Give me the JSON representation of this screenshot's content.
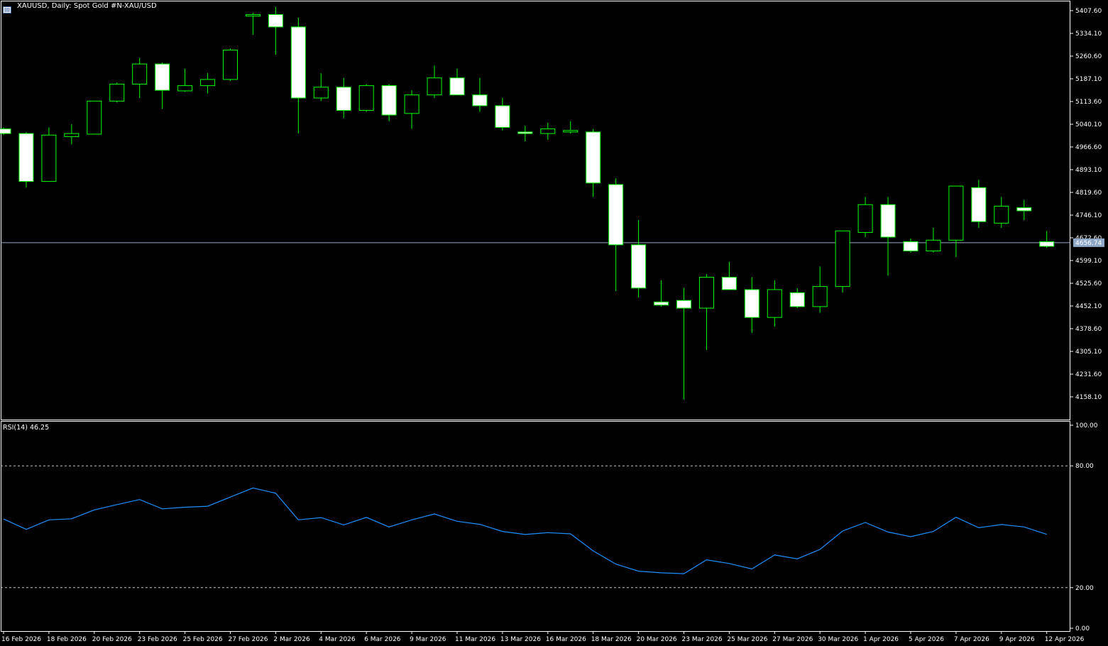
{
  "window": {
    "symbol": "XAUUSD",
    "timeframe": "Daily",
    "description": "Spot Gold #N-XAU/USD",
    "title_text": "XAUUSD, Daily:  Spot Gold #N-XAU/USD"
  },
  "colors": {
    "background": "#000000",
    "bull_body": "#000000",
    "bear_body": "#ffffff",
    "candle_outline": "#00ff00",
    "rsi_line": "#1e90ff",
    "bid_line": "#8fa8c8",
    "grid_text": "#ffffff"
  },
  "rsi_panel": {
    "label": "RSI(14) 46.25",
    "levels": [
      80,
      20
    ],
    "y_ticks": [
      "100.00",
      "80.00",
      "20.00",
      "0.00"
    ]
  },
  "price_axis": {
    "ticks": [
      "5407.60",
      "5334.10",
      "5260.60",
      "5187.10",
      "5113.60",
      "5040.10",
      "4966.60",
      "4893.10",
      "4819.60",
      "4746.10",
      "4672.60",
      "4599.10",
      "4525.60",
      "4452.10",
      "4378.60",
      "4305.10",
      "4231.60",
      "4158.10"
    ],
    "current_price": "4656.74"
  },
  "time_axis": {
    "labels": [
      "16 Feb 2026",
      "18 Feb 2026",
      "20 Feb 2026",
      "23 Feb 2026",
      "25 Feb 2026",
      "27 Feb 2026",
      "2 Mar 2026",
      "4 Mar 2026",
      "6 Mar 2026",
      "9 Mar 2026",
      "11 Mar 2026",
      "13 Mar 2026",
      "16 Mar 2026",
      "18 Mar 2026",
      "20 Mar 2026",
      "23 Mar 2026",
      "25 Mar 2026",
      "27 Mar 2026",
      "30 Mar 2026",
      "1 Apr 2026",
      "5 Apr 2026",
      "7 Apr 2026",
      "9 Apr 2026",
      "12 Apr 2026"
    ]
  },
  "chart_data": [
    {
      "type": "candlestick",
      "title": "XAUUSD, Daily:  Spot Gold #N-XAU/USD",
      "ylim": [
        4140,
        5420
      ],
      "candles": [
        {
          "open": 5025,
          "high": 5030,
          "low": 5005,
          "close": 5010
        },
        {
          "open": 5010,
          "high": 5015,
          "low": 4835,
          "close": 4855
        },
        {
          "open": 4855,
          "high": 5030,
          "low": 4855,
          "close": 5005
        },
        {
          "open": 5000,
          "high": 5040,
          "low": 4975,
          "close": 5010
        },
        {
          "open": 5008,
          "high": 5115,
          "low": 5008,
          "close": 5115
        },
        {
          "open": 5115,
          "high": 5175,
          "low": 5110,
          "close": 5170
        },
        {
          "open": 5170,
          "high": 5255,
          "low": 5125,
          "close": 5235
        },
        {
          "open": 5235,
          "high": 5240,
          "low": 5090,
          "close": 5150
        },
        {
          "open": 5148,
          "high": 5220,
          "low": 5145,
          "close": 5165
        },
        {
          "open": 5165,
          "high": 5205,
          "low": 5140,
          "close": 5185
        },
        {
          "open": 5185,
          "high": 5285,
          "low": 5180,
          "close": 5280
        },
        {
          "open": 5390,
          "high": 5400,
          "low": 5330,
          "close": 5395
        },
        {
          "open": 5395,
          "high": 5420,
          "low": 5265,
          "close": 5355
        },
        {
          "open": 5355,
          "high": 5385,
          "low": 5010,
          "close": 5125
        },
        {
          "open": 5125,
          "high": 5205,
          "low": 5115,
          "close": 5160
        },
        {
          "open": 5160,
          "high": 5190,
          "low": 5060,
          "close": 5085
        },
        {
          "open": 5085,
          "high": 5170,
          "low": 5080,
          "close": 5165
        },
        {
          "open": 5165,
          "high": 5170,
          "low": 5050,
          "close": 5070
        },
        {
          "open": 5075,
          "high": 5150,
          "low": 5025,
          "close": 5135
        },
        {
          "open": 5135,
          "high": 5230,
          "low": 5125,
          "close": 5190
        },
        {
          "open": 5190,
          "high": 5220,
          "low": 5135,
          "close": 5135
        },
        {
          "open": 5135,
          "high": 5190,
          "low": 5080,
          "close": 5100
        },
        {
          "open": 5100,
          "high": 5125,
          "low": 5020,
          "close": 5030
        },
        {
          "open": 5015,
          "high": 5035,
          "low": 4985,
          "close": 5010
        },
        {
          "open": 5010,
          "high": 5045,
          "low": 4990,
          "close": 5025
        },
        {
          "open": 5015,
          "high": 5050,
          "low": 5010,
          "close": 5020
        },
        {
          "open": 5015,
          "high": 5025,
          "low": 4805,
          "close": 4850
        },
        {
          "open": 4845,
          "high": 4865,
          "low": 4500,
          "close": 4650
        },
        {
          "open": 4650,
          "high": 4730,
          "low": 4480,
          "close": 4510
        },
        {
          "open": 4465,
          "high": 4535,
          "low": 4450,
          "close": 4455
        },
        {
          "open": 4470,
          "high": 4510,
          "low": 4150,
          "close": 4445
        },
        {
          "open": 4445,
          "high": 4555,
          "low": 4310,
          "close": 4545
        },
        {
          "open": 4545,
          "high": 4595,
          "low": 4510,
          "close": 4505
        },
        {
          "open": 4505,
          "high": 4545,
          "low": 4365,
          "close": 4415
        },
        {
          "open": 4415,
          "high": 4535,
          "low": 4385,
          "close": 4505
        },
        {
          "open": 4495,
          "high": 4510,
          "low": 4445,
          "close": 4450
        },
        {
          "open": 4450,
          "high": 4580,
          "low": 4430,
          "close": 4515
        },
        {
          "open": 4515,
          "high": 4690,
          "low": 4495,
          "close": 4695
        },
        {
          "open": 4690,
          "high": 4805,
          "low": 4675,
          "close": 4780
        },
        {
          "open": 4780,
          "high": 4805,
          "low": 4550,
          "close": 4675
        },
        {
          "open": 4660,
          "high": 4670,
          "low": 4625,
          "close": 4630
        },
        {
          "open": 4630,
          "high": 4705,
          "low": 4625,
          "close": 4665
        },
        {
          "open": 4665,
          "high": 4840,
          "low": 4610,
          "close": 4840
        },
        {
          "open": 4835,
          "high": 4860,
          "low": 4705,
          "close": 4725
        },
        {
          "open": 4720,
          "high": 4805,
          "low": 4705,
          "close": 4775
        },
        {
          "open": 4770,
          "high": 4795,
          "low": 4730,
          "close": 4760
        },
        {
          "open": 4660,
          "high": 4695,
          "low": 4640,
          "close": 4645
        }
      ]
    },
    {
      "type": "line",
      "title": "RSI(14) 46.25",
      "ylim": [
        0,
        100
      ],
      "series": [
        {
          "values": [
            53.8,
            48.7,
            53.4,
            53.9,
            58.3,
            60.9,
            63.4,
            58.8,
            59.6,
            60.1,
            64.6,
            69.1,
            66.5,
            53.4,
            54.5,
            50.9,
            54.6,
            49.9,
            53.4,
            56.3,
            52.7,
            51.2,
            47.7,
            46.2,
            47.1,
            46.5,
            38.1,
            31.6,
            28.1,
            27.3,
            26.9,
            33.7,
            31.9,
            29.2,
            36.1,
            34.2,
            38.8,
            47.9,
            52.1,
            47.4,
            45.1,
            47.7,
            54.7,
            49.5,
            51.1,
            49.9,
            46.25
          ]
        }
      ]
    }
  ]
}
